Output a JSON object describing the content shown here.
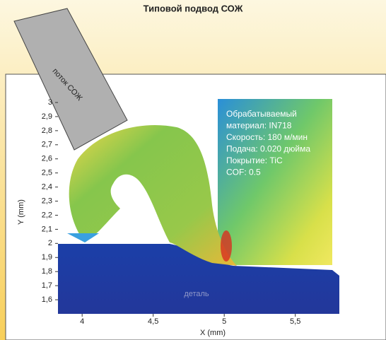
{
  "chart_data": {
    "type": "simulation",
    "title": "Типовой подвод СОЖ",
    "x_label": "X (mm)",
    "y_label": "Y (mm)",
    "xlim": [
      3.83,
      5.81
    ],
    "ylim": [
      1.5,
      3.0
    ],
    "xticks": [
      4,
      {
        "value": 4.5,
        "label": "4,5"
      },
      5,
      {
        "value": 5.5,
        "label": "5,5"
      }
    ],
    "yticks": [
      {
        "value": 1.6,
        "label": "1,6"
      },
      {
        "value": 1.7,
        "label": "1,7"
      },
      {
        "value": 1.8,
        "label": "1,8"
      },
      {
        "value": 1.9,
        "label": "1,9"
      },
      2,
      {
        "value": 2.1,
        "label": "2,1"
      },
      {
        "value": 2.2,
        "label": "2,2"
      },
      {
        "value": 2.3,
        "label": "2,3"
      },
      {
        "value": 2.4,
        "label": "2,4"
      },
      {
        "value": 2.5,
        "label": "2,5"
      },
      {
        "value": 2.6,
        "label": "2,6"
      },
      {
        "value": 2.7,
        "label": "2,7"
      },
      {
        "value": 2.8,
        "label": "2,8"
      },
      {
        "value": 2.9,
        "label": "2,9"
      },
      3
    ],
    "annotations": [
      "Обрабатываемый",
      "материал: IN718",
      "Скорость: 180 м/мин",
      "Подача: 0.020 дюйма",
      "Покрытие: TiC",
      "COF: 0.5"
    ],
    "workpiece_label": "деталь",
    "nozzle_label": "поток СОЖ"
  }
}
